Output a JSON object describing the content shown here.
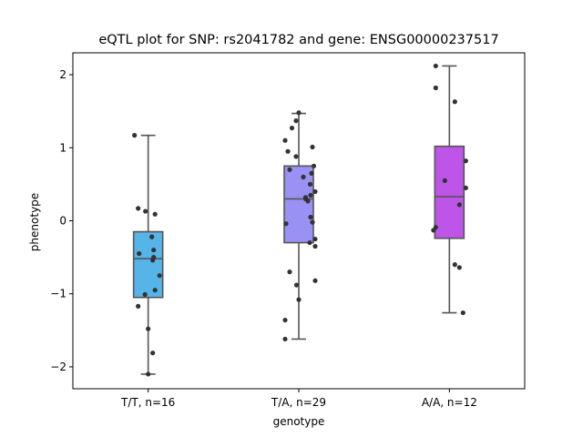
{
  "chart_data": {
    "type": "box",
    "title": "eQTL plot for SNP: rs2041782 and gene: ENSG00000237517",
    "xlabel": "genotype",
    "ylabel": "phenotype",
    "ylim": [
      -2.3,
      2.3
    ],
    "yticks": [
      -2,
      -1,
      0,
      1,
      2
    ],
    "yticklabels": [
      "−2",
      "−1",
      "0",
      "1",
      "2"
    ],
    "grid": false,
    "categories": [
      "T/T, n=16",
      "T/A, n=29",
      "A/A, n=12"
    ],
    "colors": [
      "#56b4e9",
      "#9a91f5",
      "#bc55e8"
    ],
    "boxes": [
      {
        "q1": -1.05,
        "median": -0.52,
        "q3": -0.15,
        "whisker_low": -2.1,
        "whisker_high": 1.17
      },
      {
        "q1": -0.3,
        "median": 0.3,
        "q3": 0.75,
        "whisker_low": -1.62,
        "whisker_high": 1.47
      },
      {
        "q1": -0.24,
        "median": 0.33,
        "q3": 1.02,
        "whisker_low": -1.26,
        "whisker_high": 2.12
      }
    ],
    "points": [
      [
        {
          "dx": -0.3,
          "y": 1.17
        },
        {
          "dx": -0.22,
          "y": 0.17
        },
        {
          "dx": -0.06,
          "y": 0.13
        },
        {
          "dx": 0.15,
          "y": 0.09
        },
        {
          "dx": 0.08,
          "y": -0.22
        },
        {
          "dx": 0.12,
          "y": -0.4
        },
        {
          "dx": -0.2,
          "y": -0.45
        },
        {
          "dx": 0.12,
          "y": -0.5
        },
        {
          "dx": 0.1,
          "y": -0.54
        },
        {
          "dx": 0.25,
          "y": -0.75
        },
        {
          "dx": 0.15,
          "y": -0.95
        },
        {
          "dx": -0.07,
          "y": -1.01
        },
        {
          "dx": -0.22,
          "y": -1.17
        },
        {
          "dx": 0.0,
          "y": -1.48
        },
        {
          "dx": 0.1,
          "y": -1.81
        },
        {
          "dx": 0.0,
          "y": -2.1
        }
      ],
      [
        {
          "dx": 0.0,
          "y": 1.48
        },
        {
          "dx": -0.06,
          "y": 1.37
        },
        {
          "dx": -0.15,
          "y": 1.27
        },
        {
          "dx": -0.3,
          "y": 1.1
        },
        {
          "dx": 0.3,
          "y": 1.01
        },
        {
          "dx": -0.24,
          "y": 0.95
        },
        {
          "dx": -0.06,
          "y": 0.88
        },
        {
          "dx": 0.33,
          "y": 0.75
        },
        {
          "dx": -0.2,
          "y": 0.7
        },
        {
          "dx": 0.28,
          "y": 0.65
        },
        {
          "dx": 0.1,
          "y": 0.6
        },
        {
          "dx": 0.25,
          "y": 0.5
        },
        {
          "dx": 0.36,
          "y": 0.4
        },
        {
          "dx": 0.26,
          "y": 0.35
        },
        {
          "dx": 0.15,
          "y": 0.3
        },
        {
          "dx": 0.2,
          "y": 0.27
        },
        {
          "dx": 0.26,
          "y": 0.05
        },
        {
          "dx": 0.3,
          "y": -0.02
        },
        {
          "dx": -0.28,
          "y": -0.04
        },
        {
          "dx": 0.36,
          "y": -0.25
        },
        {
          "dx": 0.36,
          "y": -0.35
        },
        {
          "dx": 0.24,
          "y": -0.3
        },
        {
          "dx": -0.2,
          "y": -0.7
        },
        {
          "dx": 0.36,
          "y": -0.82
        },
        {
          "dx": -0.05,
          "y": -0.88
        },
        {
          "dx": 0.0,
          "y": -1.08
        },
        {
          "dx": -0.3,
          "y": -1.36
        },
        {
          "dx": -0.3,
          "y": -1.62
        },
        {
          "dx": 0.15,
          "y": 0.32
        }
      ],
      [
        {
          "dx": -0.3,
          "y": 2.12
        },
        {
          "dx": -0.3,
          "y": 1.82
        },
        {
          "dx": 0.12,
          "y": 1.63
        },
        {
          "dx": 0.36,
          "y": 0.82
        },
        {
          "dx": -0.1,
          "y": 0.55
        },
        {
          "dx": 0.36,
          "y": 0.45
        },
        {
          "dx": 0.22,
          "y": 0.22
        },
        {
          "dx": -0.3,
          "y": -0.09
        },
        {
          "dx": -0.35,
          "y": -0.13
        },
        {
          "dx": 0.12,
          "y": -0.6
        },
        {
          "dx": 0.22,
          "y": -0.64
        },
        {
          "dx": 0.3,
          "y": -1.26
        }
      ]
    ]
  }
}
